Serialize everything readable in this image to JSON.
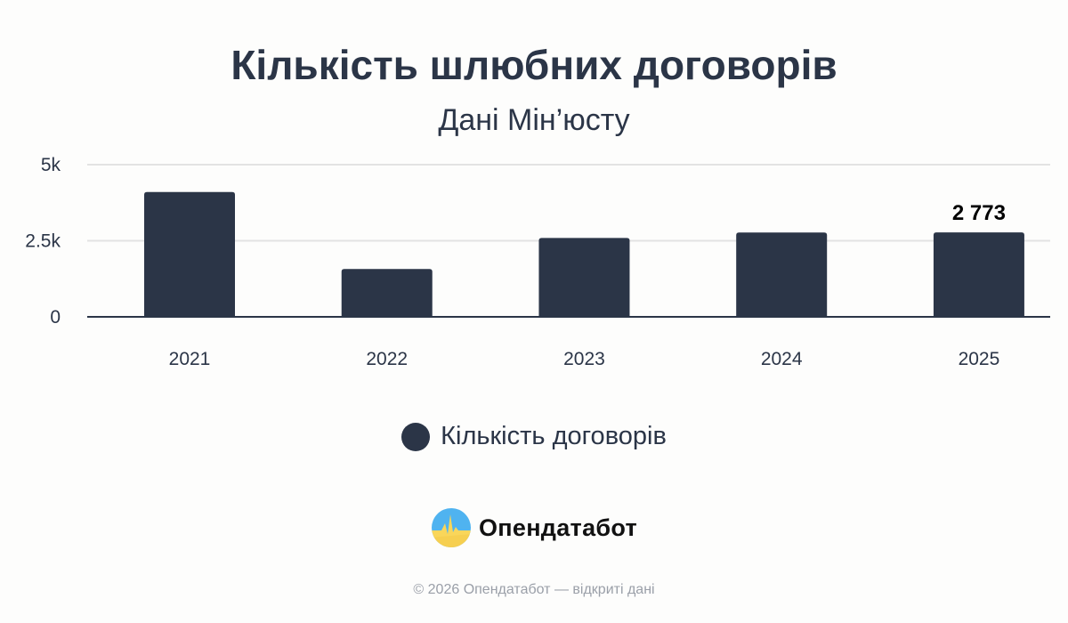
{
  "chart_data": {
    "type": "bar",
    "title": "Кількість шлюбних договорів",
    "subtitle": "Дані Мін’юсту",
    "categories": [
      "2021",
      "2022",
      "2023",
      "2024",
      "2025"
    ],
    "series": [
      {
        "name": "Кількість договорів",
        "values": [
          4100,
          1570,
          2590,
          2770,
          2773
        ],
        "color": "#2b3547"
      }
    ],
    "data_labels": [
      {
        "category": "2025",
        "text": "2 773"
      }
    ],
    "ylim": [
      0,
      5000
    ],
    "yticks": [
      {
        "value": 0,
        "label": "0"
      },
      {
        "value": 2500,
        "label": "2.5k"
      },
      {
        "value": 5000,
        "label": "5k"
      }
    ],
    "grid": true,
    "legend": "bottom"
  },
  "branding": {
    "name": "Опендатабот",
    "logo_colors": [
      "#4fb3f0",
      "#f9d65a"
    ]
  },
  "footer": "© 2026 Опендатабот — відкриті дані"
}
